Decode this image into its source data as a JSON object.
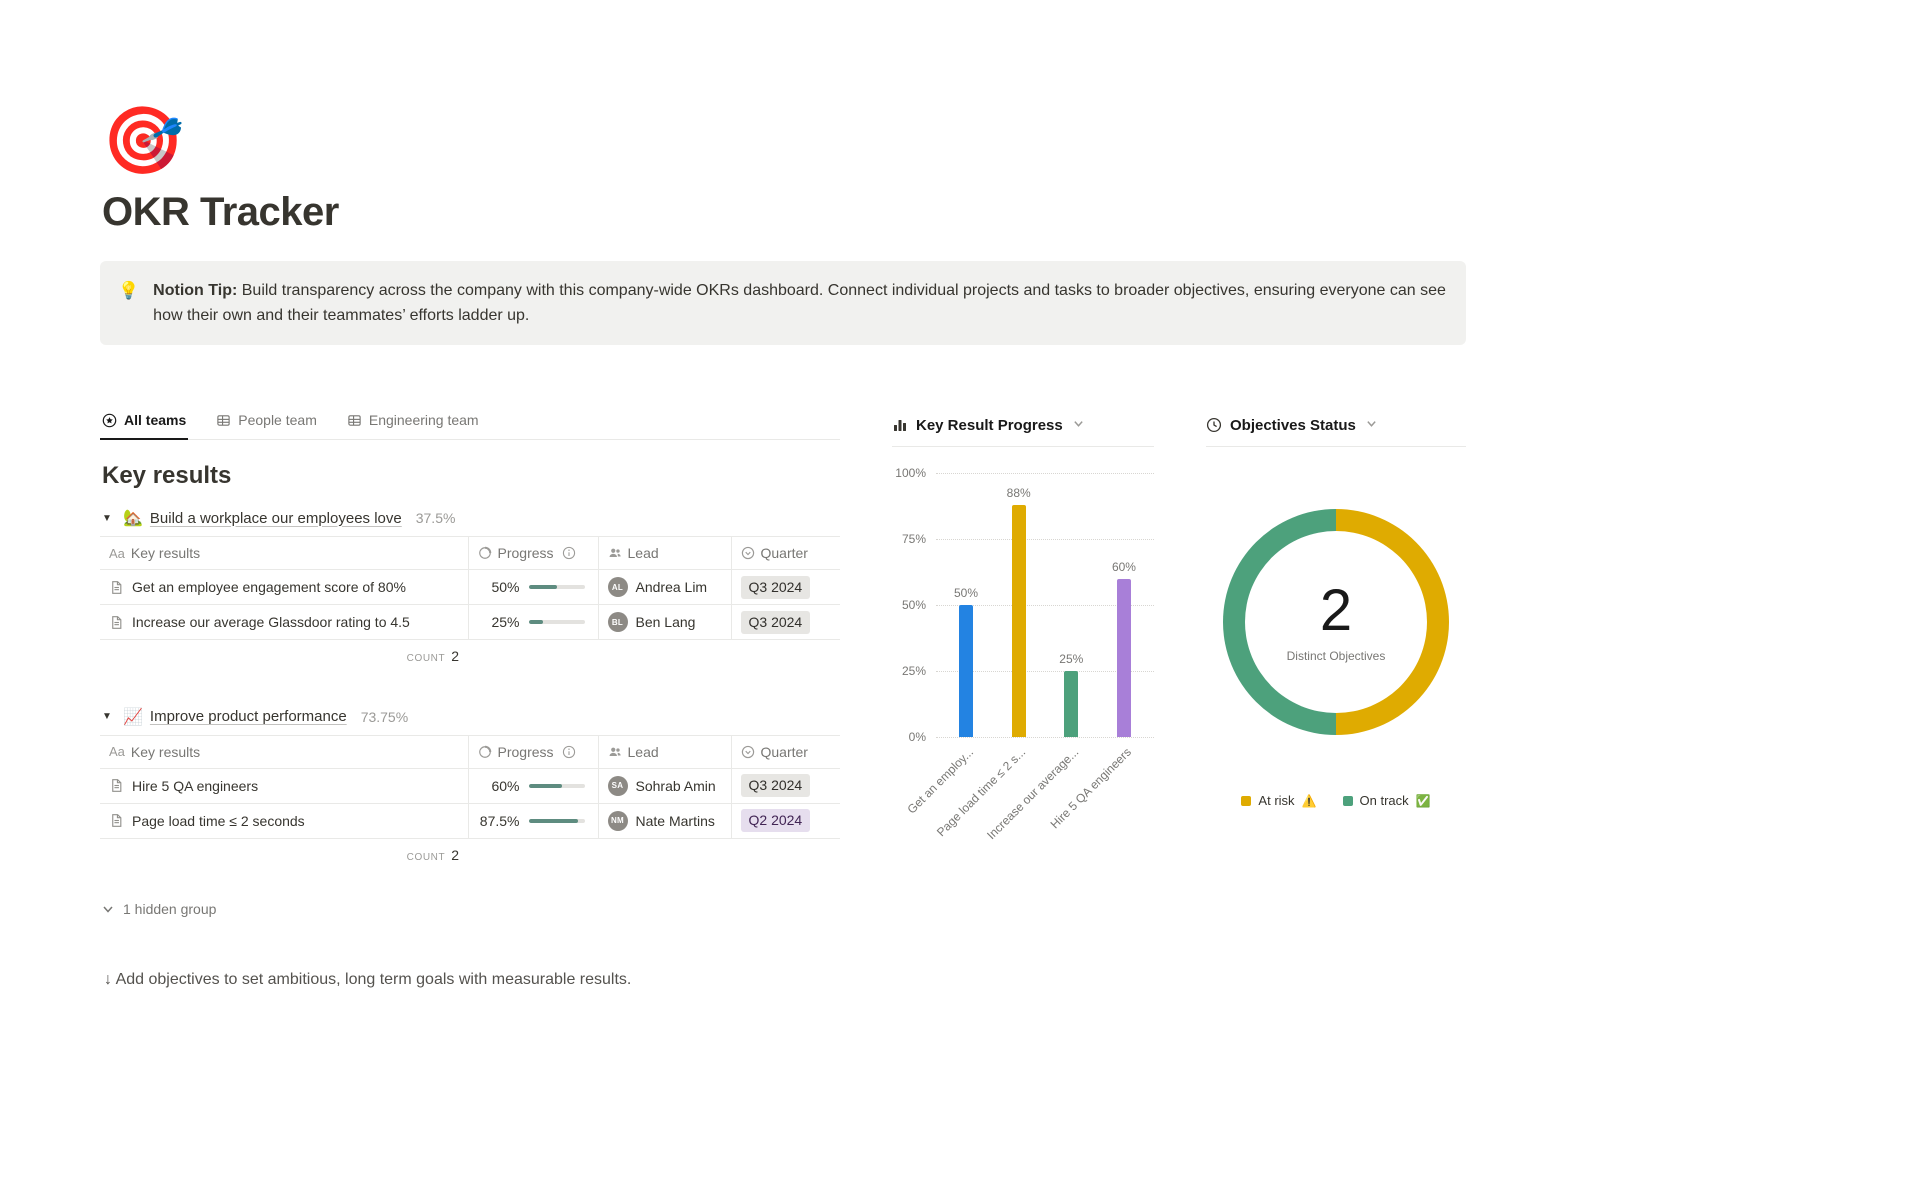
{
  "page": {
    "icon": "🎯",
    "title": "OKR Tracker"
  },
  "tip": {
    "emoji": "💡",
    "label": "Notion Tip:",
    "text": " Build transparency across the company with this company-wide OKRs dashboard. Connect individual projects and tasks to broader objectives, ensuring everyone can see how their own and their teammates’ efforts ladder up."
  },
  "tabs": [
    {
      "label": "All teams"
    },
    {
      "label": "People team"
    },
    {
      "label": "Engineering team"
    }
  ],
  "key_results": {
    "heading": "Key results",
    "table_headers": {
      "name_prefix": "Aa",
      "name": "Key results",
      "progress": "Progress",
      "lead": "Lead",
      "quarter": "Quarter"
    },
    "groups": [
      {
        "icon": "🏡",
        "title": "Build a workplace our employees love",
        "percent": "37.5%",
        "count_label": "COUNT",
        "count": "2",
        "rows": [
          {
            "name": "Get an employee engagement score of 80%",
            "progress": "50%",
            "progress_value": 50,
            "lead": "Andrea Lim",
            "quarter": "Q3 2024",
            "tag": "gray"
          },
          {
            "name": "Increase our average Glassdoor rating to 4.5",
            "progress": "25%",
            "progress_value": 25,
            "lead": "Ben Lang",
            "quarter": "Q3 2024",
            "tag": "gray"
          }
        ]
      },
      {
        "icon": "📈",
        "title": "Improve product performance",
        "percent": "73.75%",
        "count_label": "COUNT",
        "count": "2",
        "rows": [
          {
            "name": "Hire 5 QA engineers",
            "progress": "60%",
            "progress_value": 60,
            "lead": "Sohrab Amin",
            "quarter": "Q3 2024",
            "tag": "gray"
          },
          {
            "name": "Page load time ≤ 2 seconds",
            "progress": "87.5%",
            "progress_value": 87.5,
            "lead": "Nate Martins",
            "quarter": "Q2 2024",
            "tag": "purple"
          }
        ]
      }
    ],
    "hidden_group_label": "1 hidden group",
    "add_hint": "↓ Add objectives to set ambitious, long term goals with measurable results."
  },
  "chart_data": [
    {
      "type": "bar",
      "title": "Key Result Progress",
      "categories": [
        "Get an employ...",
        "Page load time ≤ 2 s...",
        "Increase our average...",
        "Hire 5 QA engineers"
      ],
      "values": [
        50,
        88,
        25,
        60
      ],
      "value_labels": [
        "50%",
        "88%",
        "25%",
        "60%"
      ],
      "colors": [
        "#2383e2",
        "#dfab01",
        "#4da17c",
        "#a87fd8"
      ],
      "ylim": [
        0,
        100
      ],
      "yticks": [
        "100%",
        "75%",
        "50%",
        "25%",
        "0%"
      ],
      "grid": true
    },
    {
      "type": "pie",
      "title": "Objectives Status",
      "center_value": "2",
      "center_label": "Distinct Objectives",
      "segments": [
        {
          "name": "At risk",
          "value": 1,
          "color": "#dfab01",
          "emoji": "⚠️"
        },
        {
          "name": "On track",
          "value": 1,
          "color": "#4da17c",
          "emoji": "✅"
        }
      ]
    }
  ]
}
